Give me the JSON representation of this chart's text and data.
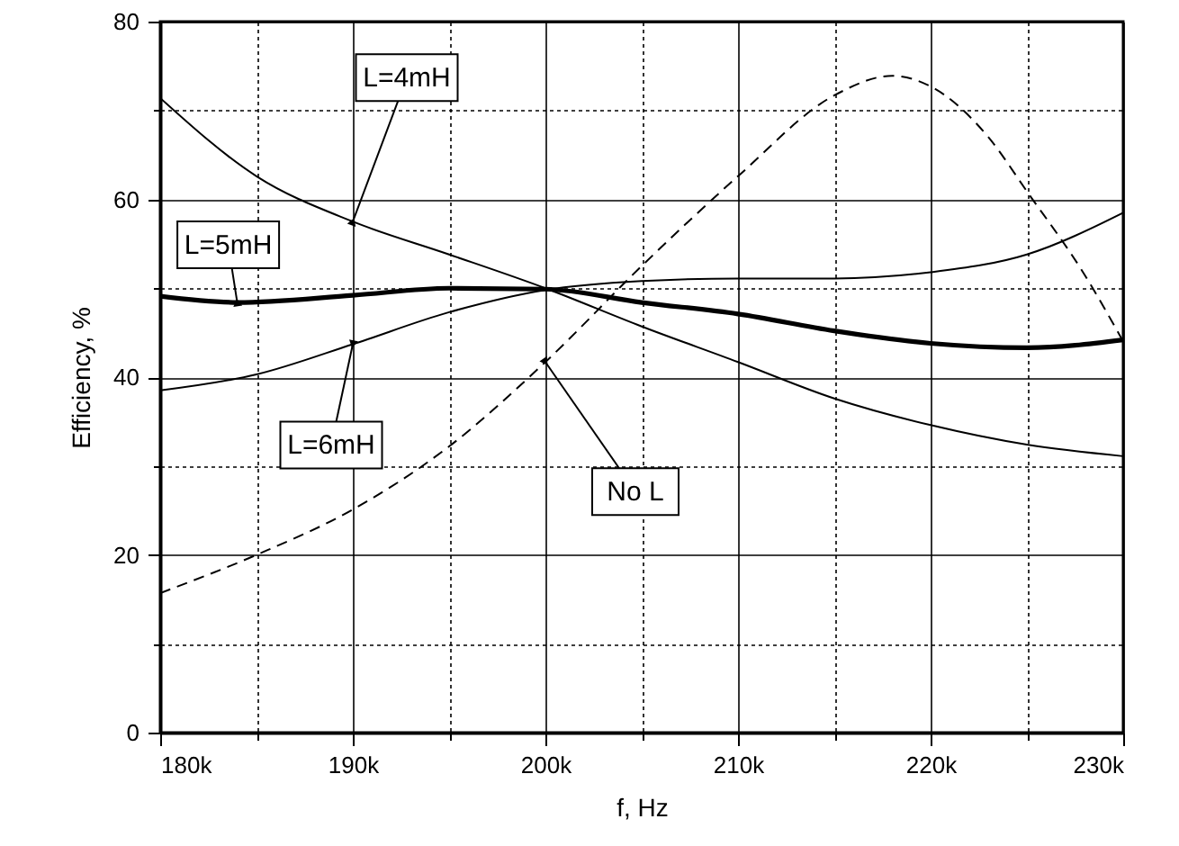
{
  "chart_data": {
    "type": "line",
    "xlabel": "f, Hz",
    "ylabel": "Efficiency, %",
    "x": [
      180000,
      185000,
      190000,
      195000,
      200000,
      205000,
      210000,
      215000,
      220000,
      225000,
      230000
    ],
    "xlim": [
      180000,
      230000
    ],
    "xticks": [
      {
        "value": 180000,
        "label": "180k"
      },
      {
        "value": 185000,
        "label": null
      },
      {
        "value": 190000,
        "label": "190k"
      },
      {
        "value": 195000,
        "label": null
      },
      {
        "value": 200000,
        "label": "200k"
      },
      {
        "value": 205000,
        "label": null
      },
      {
        "value": 210000,
        "label": "210k"
      },
      {
        "value": 215000,
        "label": null
      },
      {
        "value": 220000,
        "label": "220k"
      },
      {
        "value": 225000,
        "label": null
      },
      {
        "value": 230000,
        "label": "230k"
      }
    ],
    "ylim": [
      0,
      80
    ],
    "yticks": [
      0,
      {
        "value": 10,
        "label": null
      },
      20,
      {
        "value": 30,
        "label": null
      },
      40,
      {
        "value": 50,
        "label": null
      },
      60,
      {
        "value": 70,
        "label": null
      },
      80
    ],
    "grid": true,
    "marker": "none",
    "series": [
      {
        "name": "L=4mH",
        "color": "#000000",
        "line_style": "solid",
        "values": [
          71.4,
          62.6,
          57.5,
          53.8,
          50,
          45.7,
          41.7,
          37.6,
          34.6,
          32.4,
          31.1
        ]
      },
      {
        "name": "L=5mH",
        "color": "#000000",
        "line_style": "solid",
        "x": [
          180000,
          184000,
          190000,
          195000,
          200000,
          205000,
          210000,
          215000,
          220000,
          225000,
          230000
        ],
        "values": [
          49.1,
          48.4,
          49.2,
          50,
          49.9,
          48.4,
          47.1,
          45.2,
          43.8,
          43.3,
          44.2
        ]
      },
      {
        "name": "L=6mH",
        "color": "#000000",
        "line_style": "solid",
        "values": [
          38.5,
          40.3,
          43.7,
          47.3,
          49.8,
          50.8,
          51.1,
          51.1,
          51.8,
          53.8,
          58.5
        ]
      },
      {
        "name": "No L",
        "color": "#000000",
        "line_style": "dashed",
        "x": [
          180000,
          185000,
          190000,
          195000,
          200000,
          205000,
          210000,
          215000,
          218000,
          220000,
          223000,
          225000,
          228000,
          230000
        ],
        "values": [
          15.7,
          20,
          25.1,
          32.2,
          41.7,
          52.5,
          62.6,
          71.7,
          73.9,
          72.7,
          67,
          60.9,
          51.5,
          44
        ]
      }
    ]
  }
}
